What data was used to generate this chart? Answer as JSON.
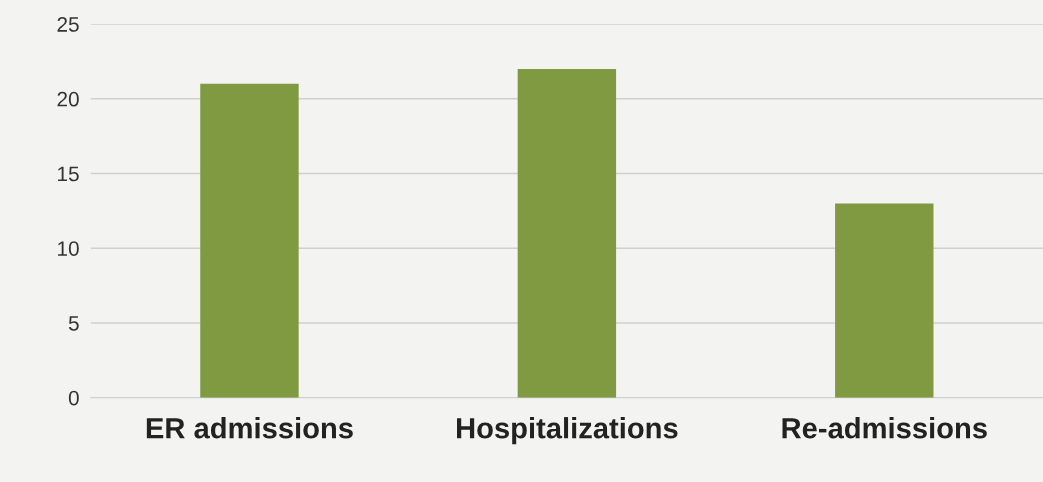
{
  "chart_data": {
    "type": "bar",
    "categories": [
      "ER admissions",
      "Hospitalizations",
      "Re-admissions"
    ],
    "values": [
      21,
      22,
      13
    ],
    "color": "#7f9a41",
    "ylim": [
      0,
      25
    ],
    "yticks": [
      0,
      5,
      10,
      15,
      20,
      25
    ],
    "grid": "y"
  }
}
